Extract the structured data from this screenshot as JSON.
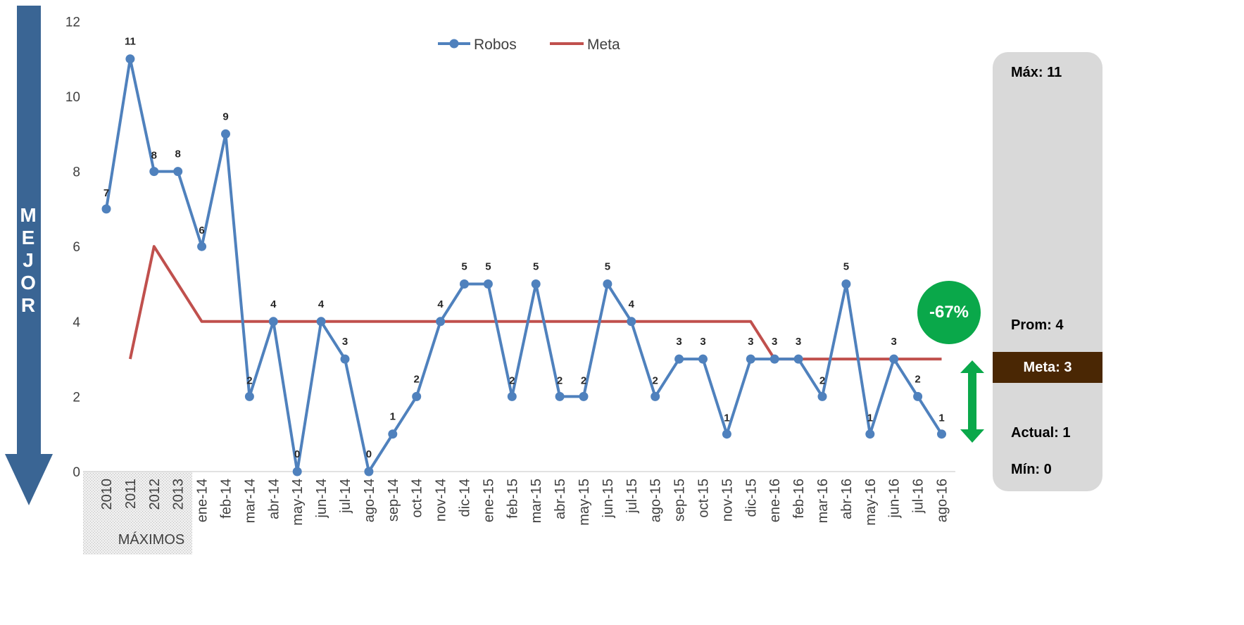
{
  "direction_label": [
    "M",
    "E",
    "J",
    "O",
    "R"
  ],
  "badge_text": "-67%",
  "stats": {
    "max": "Máx: 11",
    "avg": "Prom: 4",
    "goal": "Meta:  3",
    "current": "Actual: 1",
    "min": "Mín: 0"
  },
  "group_label": "MÁXIMOS",
  "colors": {
    "robos": "#4f81bd",
    "meta": "#c0504d",
    "arrow": "#2e5d8f",
    "badge": "#0aa84a",
    "meta_box": "#4a2704",
    "panel": "#d9d9d9"
  },
  "chart_data": {
    "type": "line",
    "title": "",
    "xlabel": "",
    "ylabel": "",
    "ylim": [
      0,
      12
    ],
    "yticks": [
      0,
      2,
      4,
      6,
      8,
      10,
      12
    ],
    "grid": false,
    "legend_position": "top",
    "categories": [
      "2010",
      "2011",
      "2012",
      "2013",
      "ene-14",
      "feb-14",
      "mar-14",
      "abr-14",
      "may-14",
      "jun-14",
      "jul-14",
      "ago-14",
      "sep-14",
      "oct-14",
      "nov-14",
      "dic-14",
      "ene-15",
      "feb-15",
      "mar-15",
      "abr-15",
      "may-15",
      "jun-15",
      "jul-15",
      "ago-15",
      "sep-15",
      "oct-15",
      "nov-15",
      "dic-15",
      "ene-16",
      "feb-16",
      "mar-16",
      "abr-16",
      "may-16",
      "jun-16",
      "jul-16",
      "ago-16"
    ],
    "series": [
      {
        "name": "Robos",
        "values": [
          7,
          11,
          8,
          8,
          6,
          9,
          2,
          4,
          0,
          4,
          3,
          0,
          1,
          2,
          4,
          5,
          5,
          2,
          5,
          2,
          2,
          5,
          4,
          2,
          3,
          3,
          1,
          3,
          3,
          3,
          2,
          5,
          1,
          3,
          2,
          1
        ],
        "data_labels": true
      },
      {
        "name": "Meta",
        "values": [
          null,
          3,
          6,
          5,
          4,
          4,
          4,
          4,
          4,
          4,
          4,
          4,
          4,
          4,
          4,
          4,
          4,
          4,
          4,
          4,
          4,
          4,
          4,
          4,
          4,
          4,
          4,
          4,
          3,
          3,
          3,
          3,
          3,
          3,
          3,
          3
        ],
        "data_labels": false
      }
    ]
  }
}
